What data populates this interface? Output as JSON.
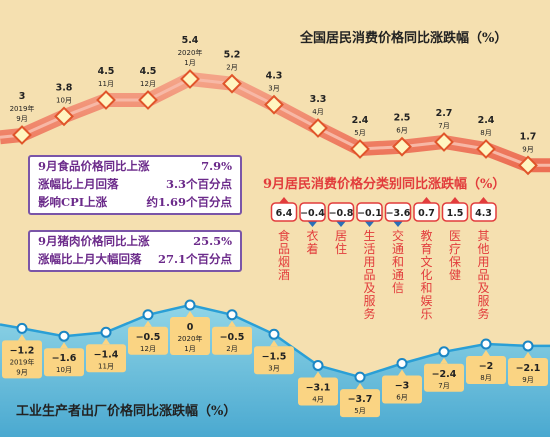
{
  "cpi_chart": {
    "title": "全国居民消费价格同比涨跌幅（%）",
    "points": [
      {
        "value": 3,
        "label": "3",
        "date": [
          "2019年",
          "9月"
        ]
      },
      {
        "value": 3.8,
        "label": "3.8",
        "date": [
          "10月"
        ]
      },
      {
        "value": 4.5,
        "label": "4.5",
        "date": [
          "11月"
        ]
      },
      {
        "value": 4.5,
        "label": "4.5",
        "date": [
          "12月"
        ]
      },
      {
        "value": 5.4,
        "label": "5.4",
        "date": [
          "2020年",
          "1月"
        ]
      },
      {
        "value": 5.2,
        "label": "5.2",
        "date": [
          "2月"
        ]
      },
      {
        "value": 4.3,
        "label": "4.3",
        "date": [
          "3月"
        ]
      },
      {
        "value": 3.3,
        "label": "3.3",
        "date": [
          "4月"
        ]
      },
      {
        "value": 2.4,
        "label": "2.4",
        "date": [
          "5月"
        ]
      },
      {
        "value": 2.5,
        "label": "2.5",
        "date": [
          "6月"
        ]
      },
      {
        "value": 2.7,
        "label": "2.7",
        "date": [
          "7月"
        ]
      },
      {
        "value": 2.4,
        "label": "2.4",
        "date": [
          "8月"
        ]
      },
      {
        "value": 1.7,
        "label": "1.7",
        "date": [
          "9月"
        ]
      }
    ]
  },
  "ppi_chart": {
    "title": "工业生产者出厂价格同比涨跌幅（%）",
    "points": [
      {
        "value": -1.2,
        "label": "−1.2",
        "date": [
          "2019年",
          "9月"
        ]
      },
      {
        "value": -1.6,
        "label": "−1.6",
        "date": [
          "10月"
        ]
      },
      {
        "value": -1.4,
        "label": "−1.4",
        "date": [
          "11月"
        ]
      },
      {
        "value": -0.5,
        "label": "−0.5",
        "date": [
          "12月"
        ]
      },
      {
        "value": 0,
        "label": "0",
        "date": [
          "2020年",
          "1月"
        ]
      },
      {
        "value": -0.5,
        "label": "−0.5",
        "date": [
          "2月"
        ]
      },
      {
        "value": -1.5,
        "label": "−1.5",
        "date": [
          "3月"
        ]
      },
      {
        "value": -3.1,
        "label": "−3.1",
        "date": [
          "4月"
        ]
      },
      {
        "value": -3.7,
        "label": "−3.7",
        "date": [
          "5月"
        ]
      },
      {
        "value": -3,
        "label": "−3",
        "date": [
          "6月"
        ]
      },
      {
        "value": -2.4,
        "label": "−2.4",
        "date": [
          "7月"
        ]
      },
      {
        "value": -2,
        "label": "−2",
        "date": [
          "8月"
        ]
      },
      {
        "value": -2.1,
        "label": "−2.1",
        "date": [
          "9月"
        ]
      }
    ]
  },
  "category_chart": {
    "title": "9月居民消费价格分类别同比涨跌幅（%）",
    "categories": [
      {
        "value": 6.4,
        "label": "6.4",
        "name": "食品烟酒"
      },
      {
        "value": -0.4,
        "label": "−0.4",
        "name": "衣着"
      },
      {
        "value": -0.8,
        "label": "−0.8",
        "name": "居住"
      },
      {
        "value": -0.1,
        "label": "−0.1",
        "name": "生活用品及服务"
      },
      {
        "value": -3.6,
        "label": "−3.6",
        "name": "交通和通信"
      },
      {
        "value": 0.7,
        "label": "0.7",
        "name": "教育文化和娱乐"
      },
      {
        "value": 1.5,
        "label": "1.5",
        "name": "医疗保健"
      },
      {
        "value": 4.3,
        "label": "4.3",
        "name": "其他用品及服务"
      }
    ]
  },
  "chart_data": [
    {
      "type": "line",
      "title": "全国居民消费价格同比涨跌幅（%）",
      "x": [
        "2019年9月",
        "10月",
        "11月",
        "12月",
        "2020年1月",
        "2月",
        "3月",
        "4月",
        "5月",
        "6月",
        "7月",
        "8月",
        "9月"
      ],
      "values": [
        3,
        3.8,
        4.5,
        4.5,
        5.4,
        5.2,
        4.3,
        3.3,
        2.4,
        2.5,
        2.7,
        2.4,
        1.7
      ]
    },
    {
      "type": "line",
      "title": "工业生产者出厂价格同比涨跌幅（%）",
      "x": [
        "2019年9月",
        "10月",
        "11月",
        "12月",
        "2020年1月",
        "2月",
        "3月",
        "4月",
        "5月",
        "6月",
        "7月",
        "8月",
        "9月"
      ],
      "values": [
        -1.2,
        -1.6,
        -1.4,
        -0.5,
        0,
        -0.5,
        -1.5,
        -3.1,
        -3.7,
        -3,
        -2.4,
        -2,
        -2.1
      ]
    },
    {
      "type": "bar",
      "title": "9月居民消费价格分类别同比涨跌幅（%）",
      "categories": [
        "食品烟酒",
        "衣着",
        "居住",
        "生活用品及服务",
        "交通和通信",
        "教育文化和娱乐",
        "医疗保健",
        "其他用品及服务"
      ],
      "values": [
        6.4,
        -0.4,
        -0.8,
        -0.1,
        -3.6,
        0.7,
        1.5,
        4.3
      ]
    }
  ],
  "food_box": {
    "rows": [
      {
        "label": "9月食品价格同比上涨",
        "value": "7.9%"
      },
      {
        "label": "涨幅比上月回落",
        "value": "3.3个百分点"
      },
      {
        "label": "影响CPI上涨",
        "value": "约1.69个百分点"
      }
    ]
  },
  "pork_box": {
    "rows": [
      {
        "label": "9月猪肉价格同比上涨",
        "value": "25.5%"
      },
      {
        "label": "涨幅比上月大幅回落",
        "value": "27.1个百分点"
      }
    ]
  },
  "colors": {
    "background": "#f5e0b0",
    "cpi_band": "#f08c6e",
    "cpi_line": "#f7b8a6",
    "marker_fill": "#fff5c0",
    "marker_border": "#e0552a",
    "ppi_area": "#5cc3e8",
    "ppi_line": "#2a9fd6",
    "ppi_label_bg": "#fad483",
    "box_border": "#7a55a8",
    "box_text": "#6b2a8a",
    "pill_bg": "#ffffff",
    "pill_border": "#e23c3c",
    "category_text": "#e23c3c"
  }
}
